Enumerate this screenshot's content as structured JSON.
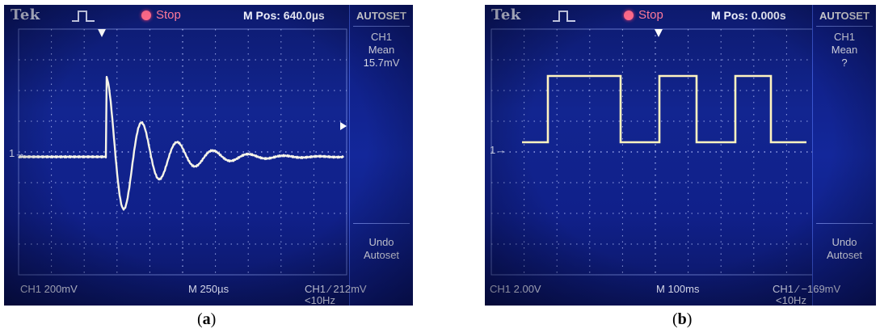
{
  "panels": [
    {
      "brand": "Tek",
      "trigger_icon": "pulse-trigger-icon",
      "status": "Stop",
      "m_pos": "M Pos: 640.0µs",
      "menu_title": "AUTOSET",
      "measure": {
        "line1": "CH1",
        "line2": "Mean",
        "line3": "15.7mV"
      },
      "undo": {
        "line1": "Undo",
        "line2": "Autoset"
      },
      "ch_scale": "CH1  200mV",
      "timebase": "M 250µs",
      "trigger_readout": "CH1 ∕ 212mV",
      "trigger_freq": "<10Hz",
      "ground_marker": "1→",
      "caption_left": "(",
      "caption_letter": "a",
      "caption_right": ")",
      "waveform": "damped-oscillation",
      "colors": {
        "trace": "#f6f4e8",
        "screen": "#122590",
        "menu": "#13279a",
        "stop": "#ff6a8a"
      }
    },
    {
      "brand": "Tek",
      "trigger_icon": "pulse-trigger-icon",
      "status": "Stop",
      "m_pos": "M Pos: 0.000s",
      "menu_title": "AUTOSET",
      "measure": {
        "line1": "CH1",
        "line2": "Mean",
        "line3": "?"
      },
      "undo": {
        "line1": "Undo",
        "line2": "Autoset"
      },
      "ch_scale": "CH1  2.00V",
      "timebase": "M 100ms",
      "trigger_readout": "CH1 ∕ −169mV",
      "trigger_freq": "<10Hz",
      "ground_marker": "1→",
      "caption_left": "(",
      "caption_letter": "b",
      "caption_right": ")",
      "waveform": "square-wave",
      "colors": {
        "trace": "#fff3c0",
        "screen": "#122590",
        "menu": "#13279a",
        "stop": "#ff6a8a"
      }
    }
  ]
}
